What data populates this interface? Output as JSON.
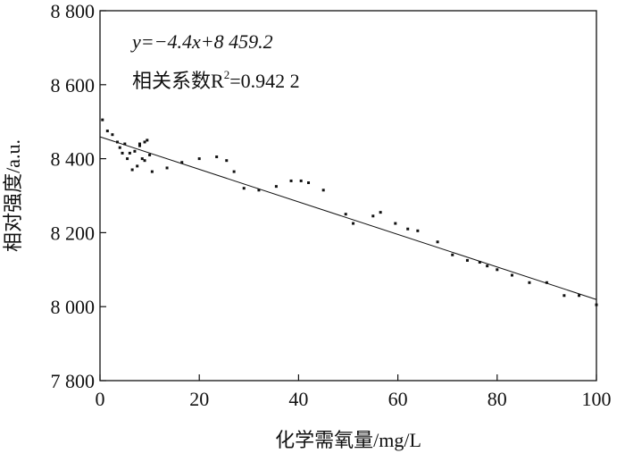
{
  "chart_data": {
    "type": "scatter",
    "title": "",
    "xlabel": "化学需氧量/mg/L",
    "ylabel": "相对强度/a.u.",
    "xlim": [
      0,
      100
    ],
    "ylim": [
      7800,
      8800
    ],
    "xticks": [
      0,
      20,
      40,
      60,
      80,
      100
    ],
    "xtick_labels": [
      "0",
      "20",
      "40",
      "60",
      "80",
      "100"
    ],
    "yticks": [
      7800,
      8000,
      8200,
      8400,
      8600,
      8800
    ],
    "ytick_labels": [
      "7 800",
      "8 000",
      "8 200",
      "8 400",
      "8 600",
      "8 800"
    ],
    "grid": false,
    "annotations": {
      "equation": "y=−4.4x+8 459.2",
      "r2_prefix": "相关系数R",
      "r2_sup": "2",
      "r2_value": "=0.942 2"
    },
    "series": [
      {
        "x": [
          0.5,
          1.5,
          2.5,
          3.5,
          4,
          4.5,
          5,
          5.5,
          6,
          6.5,
          7,
          7.5,
          8,
          8,
          8.5,
          9,
          9,
          9.5,
          10,
          10.5,
          13.5,
          16.5,
          20,
          23.5,
          25.5,
          27,
          29,
          32,
          35.5,
          38.5,
          40.5,
          42,
          45,
          49.5,
          51,
          55,
          56.5,
          59.5,
          62,
          64,
          68,
          71,
          74,
          76.5,
          78,
          80,
          83,
          86.5,
          90,
          93.5,
          96.5,
          100
        ],
        "y": [
          8505,
          8475,
          8465,
          8445,
          8430,
          8415,
          8440,
          8400,
          8415,
          8370,
          8420,
          8380,
          8435,
          8440,
          8400,
          8445,
          8395,
          8450,
          8410,
          8365,
          8375,
          8390,
          8400,
          8405,
          8395,
          8365,
          8320,
          8315,
          8325,
          8340,
          8340,
          8335,
          8315,
          8250,
          8225,
          8245,
          8255,
          8225,
          8210,
          8205,
          8175,
          8140,
          8125,
          8120,
          8110,
          8100,
          8085,
          8065,
          8065,
          8030,
          8030,
          8005
        ]
      }
    ],
    "fit_line": {
      "slope": -4.4,
      "intercept": 8459.2
    }
  }
}
